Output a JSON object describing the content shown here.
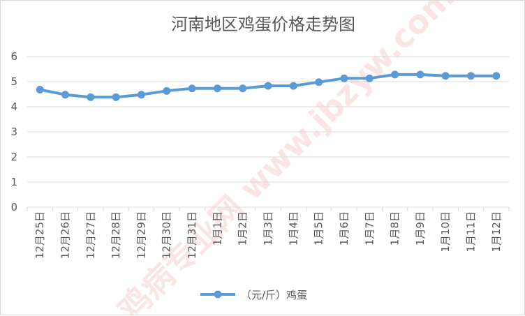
{
  "chart_data": {
    "type": "line",
    "title": "河南地区鸡蛋价格走势图",
    "categories": [
      "12月25日",
      "12月26日",
      "12月27日",
      "12月28日",
      "12月29日",
      "12月30日",
      "12月31日",
      "1月1日",
      "1月2日",
      "1月3日",
      "1月4日",
      "1月5日",
      "1月6日",
      "1月7日",
      "1月8日",
      "1月9日",
      "1月10日",
      "1月11日",
      "1月12日"
    ],
    "series": [
      {
        "name": "（元/斤）鸡蛋",
        "values": [
          4.68,
          4.48,
          4.38,
          4.38,
          4.48,
          4.63,
          4.73,
          4.73,
          4.73,
          4.83,
          4.83,
          4.98,
          5.13,
          5.13,
          5.28,
          5.28,
          5.23,
          5.23,
          5.23
        ],
        "color": "#5b9bd5"
      }
    ],
    "y_ticks": [
      "0",
      "1",
      "2",
      "3",
      "4",
      "5",
      "6"
    ],
    "ylim": [
      0,
      6
    ],
    "grid": true,
    "legend_position": "bottom",
    "watermark": "鸡病专业网 www.jbzyw.com"
  }
}
